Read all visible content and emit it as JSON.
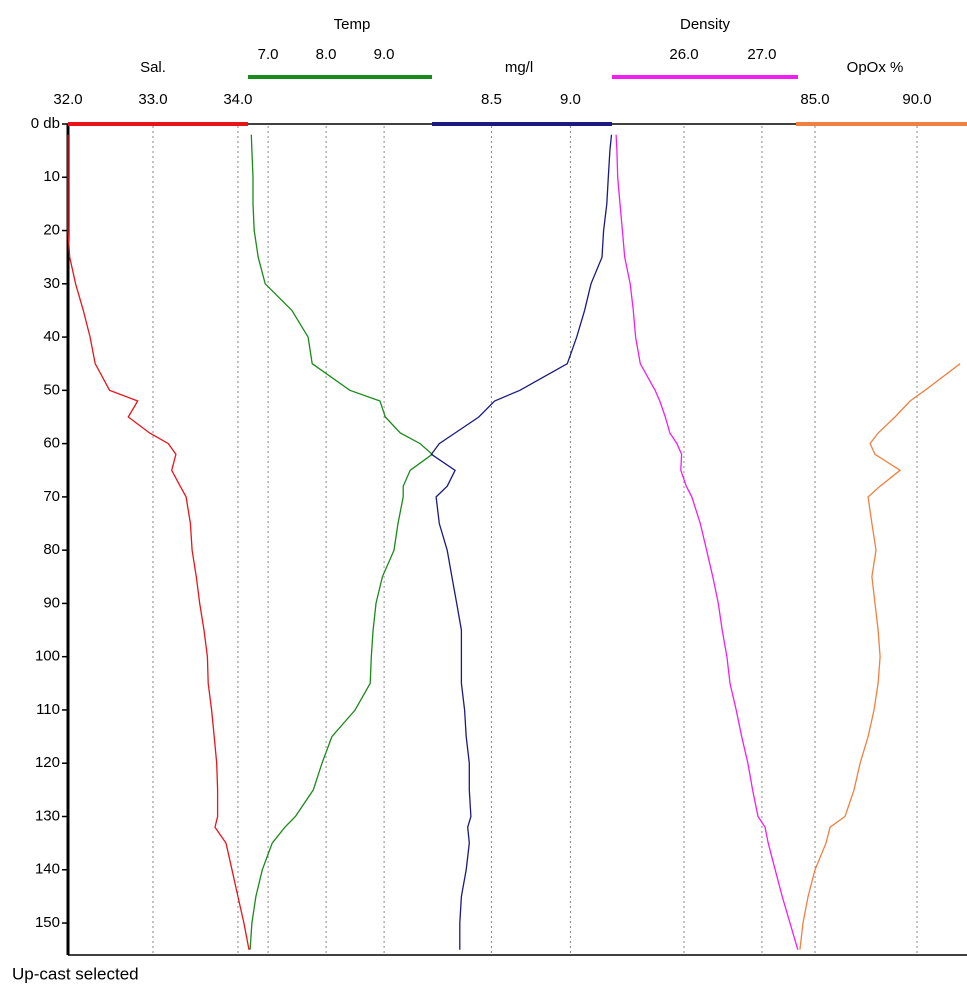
{
  "chart_data": {
    "type": "line",
    "y": [
      2,
      5,
      10,
      15,
      20,
      25,
      30,
      35,
      40,
      45,
      50,
      52,
      55,
      58,
      60,
      62,
      65,
      68,
      70,
      75,
      80,
      85,
      90,
      95,
      100,
      105,
      110,
      115,
      120,
      125,
      130,
      132,
      135,
      140,
      145,
      150,
      155
    ],
    "ylim": [
      0,
      156
    ],
    "yticks": [
      {
        "value": 0,
        "label": "0 db"
      },
      10,
      20,
      30,
      40,
      50,
      60,
      70,
      80,
      90,
      100,
      110,
      120,
      130,
      140,
      150
    ],
    "grid": true,
    "series": [
      {
        "name": "Sal.",
        "color": "#e8141a",
        "xlim": [
          32,
          42.58
        ],
        "xticks": [
          {
            "value": 32,
            "label": "32.0"
          },
          {
            "value": 33,
            "label": "33.0"
          },
          {
            "value": 34,
            "label": "34.0"
          }
        ],
        "values": [
          32.0,
          32.0,
          32.0,
          32.0,
          32.0,
          32.02,
          32.09,
          32.18,
          32.26,
          32.32,
          32.49,
          32.82,
          32.71,
          32.96,
          33.18,
          33.27,
          33.22,
          33.32,
          33.39,
          33.44,
          33.46,
          33.51,
          33.55,
          33.6,
          33.64,
          33.65,
          33.69,
          33.72,
          33.75,
          33.76,
          33.76,
          33.73,
          33.86,
          33.93,
          34.0,
          34.07,
          34.13
        ]
      },
      {
        "name": "Temp",
        "color": "#1a8a1a",
        "xlim": [
          3.55,
          19.05
        ],
        "xticks": [
          {
            "value": 7,
            "label": "7.0"
          },
          {
            "value": 8,
            "label": "8.0"
          },
          {
            "value": 9,
            "label": "9.0"
          }
        ],
        "values": [
          6.71,
          6.72,
          6.74,
          6.74,
          6.76,
          6.83,
          6.95,
          7.41,
          7.69,
          7.76,
          8.41,
          8.93,
          9.02,
          9.28,
          9.62,
          9.83,
          9.45,
          9.33,
          9.33,
          9.24,
          9.17,
          8.97,
          8.86,
          8.81,
          8.78,
          8.76,
          8.5,
          8.1,
          7.93,
          7.78,
          7.47,
          7.29,
          7.07,
          6.9,
          6.79,
          6.72,
          6.69
        ]
      },
      {
        "name": "mg/l",
        "color": "#1a1a80",
        "xlim": [
          5.82,
          11.51
        ],
        "xticks": [
          8.5,
          {
            "value": 9,
            "label": "9.0"
          }
        ],
        "values": [
          9.26,
          9.25,
          9.24,
          9.23,
          9.21,
          9.2,
          9.13,
          9.09,
          9.04,
          8.98,
          8.68,
          8.52,
          8.42,
          8.27,
          8.17,
          8.12,
          8.27,
          8.22,
          8.15,
          8.17,
          8.22,
          8.25,
          8.28,
          8.31,
          8.31,
          8.31,
          8.33,
          8.34,
          8.36,
          8.36,
          8.37,
          8.35,
          8.36,
          8.34,
          8.31,
          8.3,
          8.3
        ]
      },
      {
        "name": "Density",
        "color": "#f01ef0",
        "xlim": [
          18.1,
          29.63
        ],
        "xticks": [
          {
            "value": 26,
            "label": "26.0"
          },
          {
            "value": 27,
            "label": "27.0"
          }
        ],
        "values": [
          25.13,
          25.14,
          25.15,
          25.18,
          25.21,
          25.24,
          25.31,
          25.35,
          25.38,
          25.44,
          25.63,
          25.69,
          25.76,
          25.82,
          25.91,
          25.97,
          25.96,
          26.03,
          26.1,
          26.21,
          26.29,
          26.37,
          26.44,
          26.49,
          26.55,
          26.59,
          26.67,
          26.74,
          26.82,
          26.88,
          26.95,
          27.04,
          27.08,
          27.17,
          27.26,
          27.36,
          27.46
        ]
      },
      {
        "name": "OpOx %",
        "color": "#f08040",
        "xlim": [
          48.38,
          92.45
        ],
        "xticks": [
          {
            "value": 85,
            "label": "85.0"
          },
          {
            "value": 90,
            "label": "90.0"
          }
        ],
        "values": [
          null,
          null,
          null,
          null,
          null,
          null,
          null,
          null,
          null,
          92.11,
          90.39,
          89.66,
          88.92,
          88.09,
          87.7,
          87.94,
          89.17,
          88.19,
          87.6,
          87.79,
          87.99,
          87.79,
          87.94,
          88.09,
          88.19,
          88.09,
          87.89,
          87.6,
          87.21,
          86.91,
          86.47,
          85.74,
          85.54,
          85.0,
          84.66,
          84.41,
          84.26
        ]
      }
    ]
  },
  "status": "Up-cast selected"
}
